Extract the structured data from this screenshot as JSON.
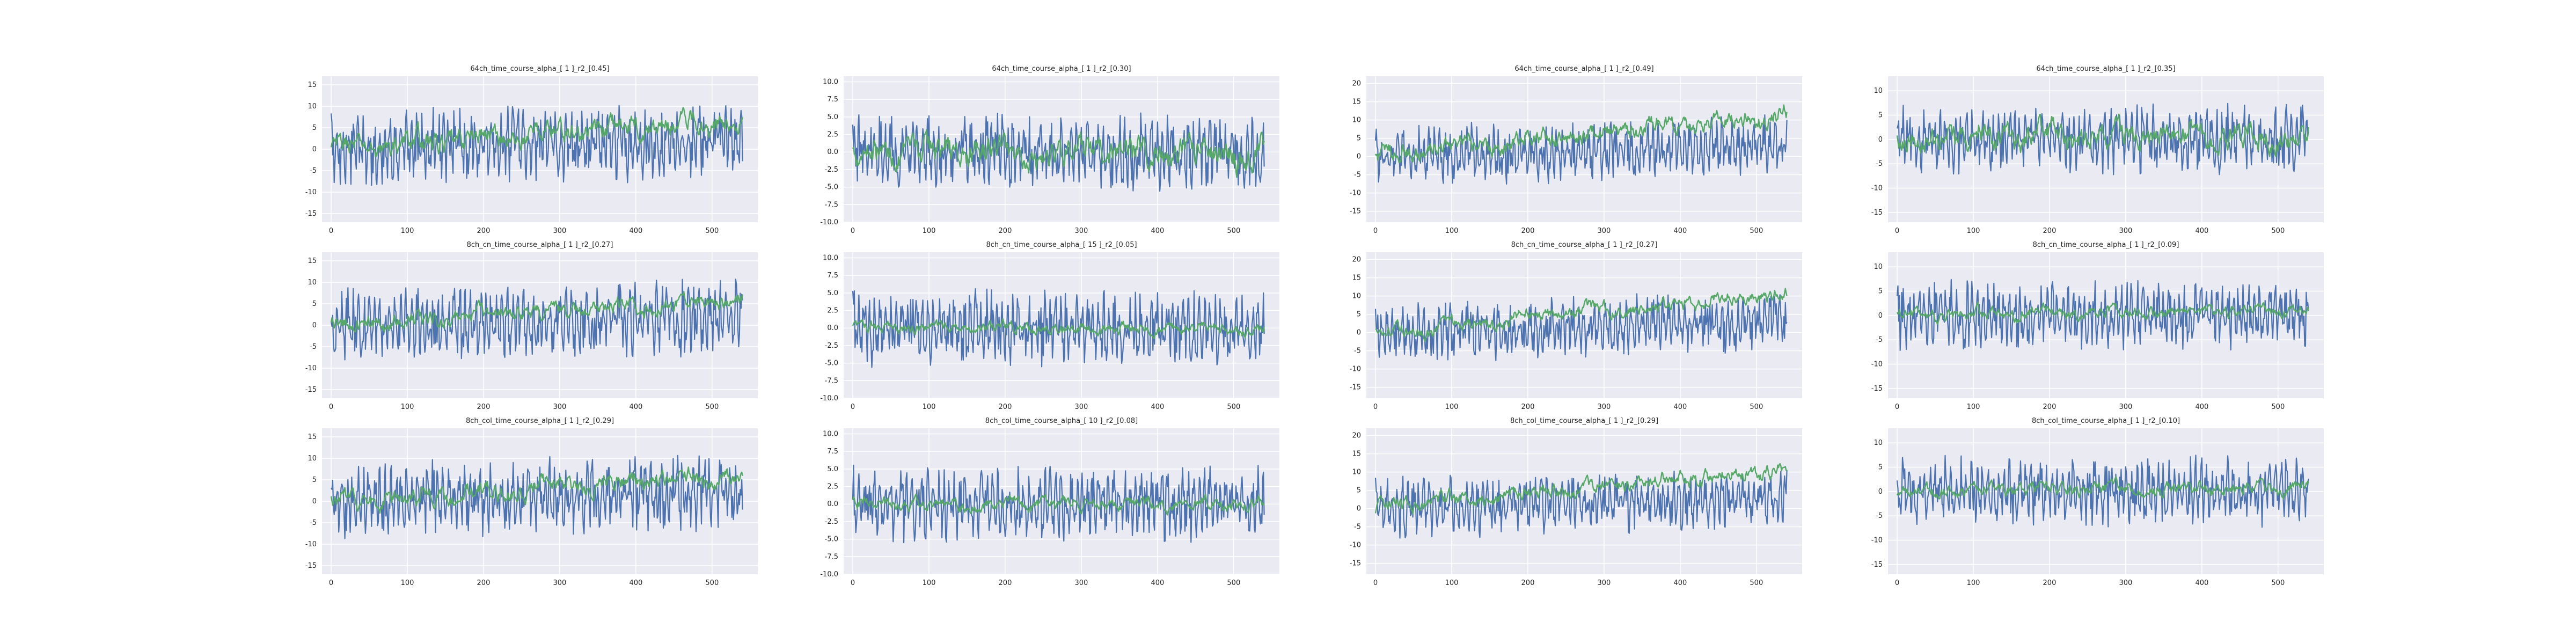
{
  "figure": {
    "colors": {
      "background": "#ffffff",
      "axes_bg": "#eaeaf2",
      "grid": "#ffffff",
      "series_a": "#4c72b0",
      "series_b": "#55a868",
      "text": "#262626"
    }
  },
  "chart_data": [
    {
      "type": "line",
      "title": "64ch_time_course_alpha_[ 1 ]_r2_[0.45]",
      "xticks": [
        0,
        100,
        200,
        300,
        400,
        500
      ],
      "yticks": [
        -15,
        -10,
        -5,
        0,
        5,
        10,
        15
      ],
      "xlim": [
        -12,
        560
      ],
      "ylim": [
        -17,
        17
      ],
      "x_range": [
        0,
        540
      ],
      "series": [
        {
          "color": "#4c72b0",
          "trend": [
            0,
            2
          ],
          "noise": 7.5
        },
        {
          "color": "#55a868",
          "trend": [
            0,
            7
          ],
          "noise": 2.5
        }
      ]
    },
    {
      "type": "line",
      "title": "64ch_time_course_alpha_[ 1 ]_r2_[0.30]",
      "xticks": [
        0,
        100,
        200,
        300,
        400,
        500
      ],
      "yticks": [
        "-10.0",
        "-7.5",
        "-5.0",
        "-2.5",
        "0.0",
        "2.5",
        "5.0",
        "7.5",
        "10.0"
      ],
      "xlim": [
        -12,
        560
      ],
      "ylim": [
        -10,
        10.8
      ],
      "x_range": [
        0,
        540
      ],
      "series": [
        {
          "color": "#4c72b0",
          "trend": [
            0,
            0
          ],
          "noise": 4.5
        },
        {
          "color": "#55a868",
          "trend": [
            0,
            0
          ],
          "noise": 2.0
        }
      ]
    },
    {
      "type": "line",
      "title": "64ch_time_course_alpha_[ 1 ]_r2_[0.49]",
      "xticks": [
        0,
        100,
        200,
        300,
        400,
        500
      ],
      "yticks": [
        -15,
        -10,
        -5,
        0,
        5,
        10,
        15,
        20
      ],
      "xlim": [
        -12,
        560
      ],
      "ylim": [
        -18,
        22
      ],
      "x_range": [
        0,
        540
      ],
      "series": [
        {
          "color": "#4c72b0",
          "trend": [
            0,
            3
          ],
          "noise": 7.0
        },
        {
          "color": "#55a868",
          "trend": [
            0,
            12
          ],
          "noise": 2.5
        }
      ]
    },
    {
      "type": "line",
      "title": "64ch_time_course_alpha_[ 1 ]_r2_[0.35]",
      "xticks": [
        0,
        100,
        200,
        300,
        400,
        500
      ],
      "yticks": [
        -15,
        -10,
        -5,
        0,
        5,
        10
      ],
      "xlim": [
        -12,
        560
      ],
      "ylim": [
        -17,
        13
      ],
      "x_range": [
        0,
        540
      ],
      "series": [
        {
          "color": "#4c72b0",
          "trend": [
            0,
            0
          ],
          "noise": 6.0
        },
        {
          "color": "#55a868",
          "trend": [
            0,
            1
          ],
          "noise": 2.5
        }
      ]
    },
    {
      "type": "line",
      "title": "8ch_cn_time_course_alpha_[ 1 ]_r2_[0.27]",
      "xticks": [
        0,
        100,
        200,
        300,
        400,
        500
      ],
      "yticks": [
        -15,
        -10,
        -5,
        0,
        5,
        10,
        15
      ],
      "xlim": [
        -12,
        560
      ],
      "ylim": [
        -17,
        17
      ],
      "x_range": [
        0,
        540
      ],
      "series": [
        {
          "color": "#4c72b0",
          "trend": [
            0,
            2
          ],
          "noise": 7.5
        },
        {
          "color": "#55a868",
          "trend": [
            0,
            6
          ],
          "noise": 1.8
        }
      ]
    },
    {
      "type": "line",
      "title": "8ch_cn_time_course_alpha_[ 15 ]_r2_[0.05]",
      "xticks": [
        0,
        100,
        200,
        300,
        400,
        500
      ],
      "yticks": [
        "-10.0",
        "-7.5",
        "-5.0",
        "-2.5",
        "0.0",
        "2.5",
        "5.0",
        "7.5",
        "10.0"
      ],
      "xlim": [
        -12,
        560
      ],
      "ylim": [
        -10,
        10.8
      ],
      "x_range": [
        0,
        540
      ],
      "series": [
        {
          "color": "#4c72b0",
          "trend": [
            0,
            0
          ],
          "noise": 4.5
        },
        {
          "color": "#55a868",
          "trend": [
            0,
            0
          ],
          "noise": 0.8
        }
      ]
    },
    {
      "type": "line",
      "title": "8ch_cn_time_course_alpha_[ 1 ]_r2_[0.27]",
      "xticks": [
        0,
        100,
        200,
        300,
        400,
        500
      ],
      "yticks": [
        -15,
        -10,
        -5,
        0,
        5,
        10,
        15,
        20
      ],
      "xlim": [
        -12,
        560
      ],
      "ylim": [
        -18,
        22
      ],
      "x_range": [
        0,
        540
      ],
      "series": [
        {
          "color": "#4c72b0",
          "trend": [
            0,
            3
          ],
          "noise": 7.0
        },
        {
          "color": "#55a868",
          "trend": [
            0,
            11
          ],
          "noise": 1.8
        }
      ]
    },
    {
      "type": "line",
      "title": "8ch_cn_time_course_alpha_[ 1 ]_r2_[0.09]",
      "xticks": [
        0,
        100,
        200,
        300,
        400,
        500
      ],
      "yticks": [
        -15,
        -10,
        -5,
        0,
        5,
        10
      ],
      "xlim": [
        -12,
        560
      ],
      "ylim": [
        -17,
        13
      ],
      "x_range": [
        0,
        540
      ],
      "series": [
        {
          "color": "#4c72b0",
          "trend": [
            0,
            0
          ],
          "noise": 6.0
        },
        {
          "color": "#55a868",
          "trend": [
            0,
            1
          ],
          "noise": 1.2
        }
      ]
    },
    {
      "type": "line",
      "title": "8ch_col_time_course_alpha_[ 1 ]_r2_[0.29]",
      "xticks": [
        0,
        100,
        200,
        300,
        400,
        500
      ],
      "yticks": [
        -15,
        -10,
        -5,
        0,
        5,
        10,
        15
      ],
      "xlim": [
        -12,
        560
      ],
      "ylim": [
        -17,
        17
      ],
      "x_range": [
        0,
        540
      ],
      "series": [
        {
          "color": "#4c72b0",
          "trend": [
            0,
            2
          ],
          "noise": 7.5
        },
        {
          "color": "#55a868",
          "trend": [
            0,
            6
          ],
          "noise": 2.0
        }
      ]
    },
    {
      "type": "line",
      "title": "8ch_col_time_course_alpha_[ 10 ]_r2_[0.08]",
      "xticks": [
        0,
        100,
        200,
        300,
        400,
        500
      ],
      "yticks": [
        "-10.0",
        "-7.5",
        "-5.0",
        "-2.5",
        "0.0",
        "2.5",
        "5.0",
        "7.5",
        "10.0"
      ],
      "xlim": [
        -12,
        560
      ],
      "ylim": [
        -10,
        10.8
      ],
      "x_range": [
        0,
        540
      ],
      "series": [
        {
          "color": "#4c72b0",
          "trend": [
            0,
            0
          ],
          "noise": 4.5
        },
        {
          "color": "#55a868",
          "trend": [
            0,
            0
          ],
          "noise": 0.9
        }
      ]
    },
    {
      "type": "line",
      "title": "8ch_col_time_course_alpha_[ 1 ]_r2_[0.29]",
      "xticks": [
        0,
        100,
        200,
        300,
        400,
        500
      ],
      "yticks": [
        -15,
        -10,
        -5,
        0,
        5,
        10,
        15,
        20
      ],
      "xlim": [
        -12,
        560
      ],
      "ylim": [
        -18,
        22
      ],
      "x_range": [
        0,
        540
      ],
      "series": [
        {
          "color": "#4c72b0",
          "trend": [
            0,
            3
          ],
          "noise": 7.0
        },
        {
          "color": "#55a868",
          "trend": [
            0,
            11
          ],
          "noise": 2.0
        }
      ]
    },
    {
      "type": "line",
      "title": "8ch_col_time_course_alpha_[ 1 ]_r2_[0.10]",
      "xticks": [
        0,
        100,
        200,
        300,
        400,
        500
      ],
      "yticks": [
        -15,
        -10,
        -5,
        0,
        5,
        10
      ],
      "xlim": [
        -12,
        560
      ],
      "ylim": [
        -17,
        13
      ],
      "x_range": [
        0,
        540
      ],
      "series": [
        {
          "color": "#4c72b0",
          "trend": [
            0,
            0
          ],
          "noise": 6.0
        },
        {
          "color": "#55a868",
          "trend": [
            0,
            1
          ],
          "noise": 1.3
        }
      ]
    }
  ]
}
